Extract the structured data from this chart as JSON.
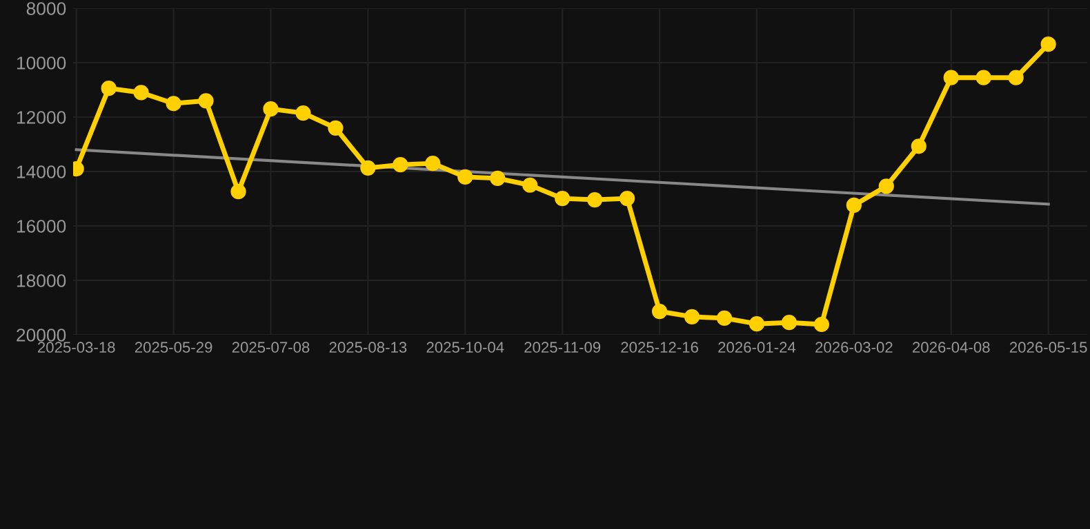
{
  "chart_data": {
    "type": "line",
    "categories": [
      "2025-03-18",
      null,
      null,
      "2025-05-29",
      null,
      null,
      "2025-07-08",
      null,
      null,
      "2025-08-13",
      null,
      null,
      "2025-10-04",
      null,
      null,
      "2025-11-09",
      null,
      null,
      "2025-12-16",
      null,
      null,
      "2026-01-24",
      null,
      null,
      "2026-03-02",
      null,
      null,
      "2026-04-08",
      null,
      null,
      "2026-05-15"
    ],
    "series": [
      {
        "color": "#ffd000",
        "marker": "circle",
        "values": [
          13900,
          10940,
          11100,
          11500,
          11400,
          14740,
          11700,
          11850,
          12400,
          13870,
          13750,
          13700,
          14200,
          14250,
          14500,
          14990,
          15040,
          14990,
          19140,
          19340,
          19390,
          19600,
          19550,
          19620,
          15240,
          14540,
          13070,
          10550,
          10550,
          10550,
          9320
        ]
      },
      {
        "color": "#888888",
        "marker": "none",
        "values": [
          13200,
          null,
          null,
          null,
          null,
          null,
          null,
          null,
          null,
          null,
          null,
          null,
          null,
          null,
          null,
          null,
          null,
          null,
          null,
          null,
          null,
          null,
          null,
          null,
          null,
          null,
          null,
          null,
          null,
          null,
          15200
        ]
      }
    ],
    "ylim": [
      20000,
      8000
    ],
    "yticks": [
      8000,
      10000,
      12000,
      14000,
      16000,
      18000,
      20000
    ],
    "grid": true
  }
}
